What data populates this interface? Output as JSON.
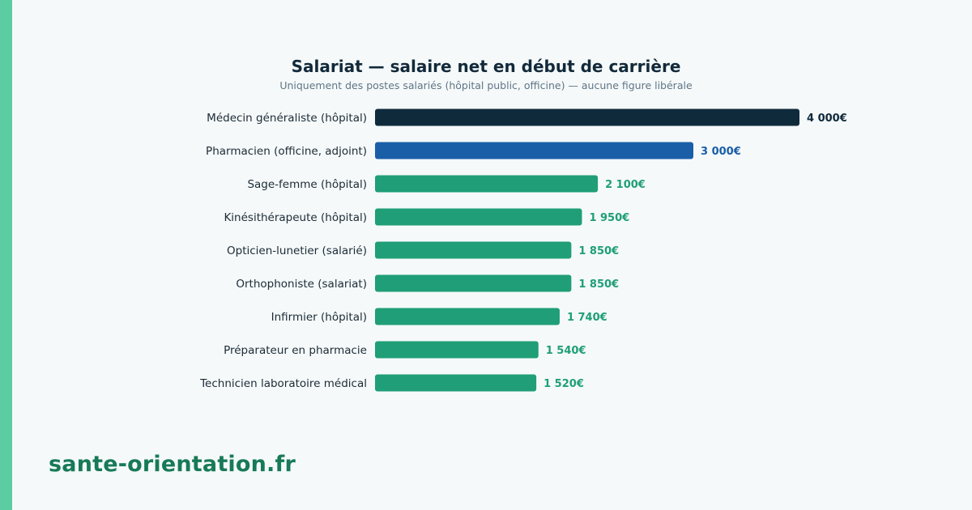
{
  "colors": {
    "accent_stripe": "#5ccca3",
    "background": "#f5f9fa",
    "bar_highlight": "#0f2a3b",
    "bar_secondary": "#1a5ea8",
    "bar_default": "#1f9e77",
    "brand": "#177a57"
  },
  "brand": {
    "text": "sante-orientation.fr"
  },
  "chart_data": {
    "type": "bar",
    "orientation": "horizontal",
    "title": "Salariat — salaire net en début de carrière",
    "subtitle": "Uniquement des postes salariés (hôpital public, officine) — aucune figure libérale",
    "xlabel": "",
    "ylabel": "",
    "grid": false,
    "xlim": [
      0,
      4000
    ],
    "categories": [
      "Médecin généraliste (hôpital)",
      "Pharmacien (officine, adjoint)",
      "Sage-femme (hôpital)",
      "Kinésithérapeute (hôpital)",
      "Opticien-lunetier (salarié)",
      "Orthophoniste (salariat)",
      "Infirmier (hôpital)",
      "Préparateur en pharmacie",
      "Technicien laboratoire médical"
    ],
    "values": [
      4000,
      3000,
      2100,
      1950,
      1850,
      1850,
      1740,
      1540,
      1520
    ],
    "value_labels": [
      "4 000€",
      "3 000€",
      "2 100€",
      "1 950€",
      "1 850€",
      "1 850€",
      "1 740€",
      "1 540€",
      "1 520€"
    ],
    "bar_colors": [
      "#0f2a3b",
      "#1a5ea8",
      "#1f9e77",
      "#1f9e77",
      "#1f9e77",
      "#1f9e77",
      "#1f9e77",
      "#1f9e77",
      "#1f9e77"
    ]
  }
}
